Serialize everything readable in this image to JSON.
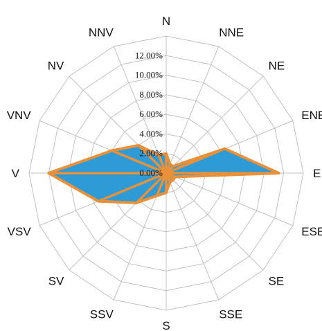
{
  "chart_data": {
    "type": "radar",
    "categories": [
      "N",
      "NNE",
      "NE",
      "ENE",
      "E",
      "ESE",
      "SE",
      "SSE",
      "S",
      "SSV",
      "SV",
      "VSV",
      "V",
      "VNV",
      "NV",
      "NNV"
    ],
    "series": [
      {
        "values": [
          2.0,
          1.0,
          1.0,
          6.5,
          11.5,
          1.0,
          1.0,
          1.0,
          2.0,
          2.5,
          4.3,
          7.5,
          12.0,
          6.0,
          4.0,
          2.0
        ]
      }
    ],
    "r_ticks": [
      "0.00%",
      "2.00%",
      "4.00%",
      "6.00%",
      "8.00%",
      "10.00%",
      "12.00%"
    ],
    "r_max": 12,
    "r_outer": 14,
    "rings": 7,
    "rays": "all 16 directions, drawn in series color over the fill",
    "colors": {
      "fill": "#2e9bd6",
      "line": "#e8913a",
      "grid": "#c0c0c0"
    }
  }
}
